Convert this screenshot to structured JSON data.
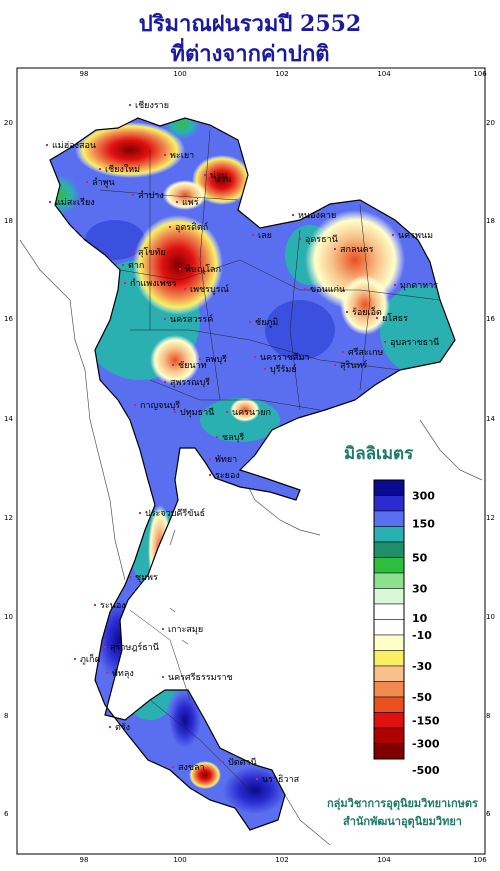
{
  "title_line1": "ปริมาณฝนรวมปี  2552",
  "title_line2": "ที่ต่างจากค่าปกติ",
  "axis": {
    "lon_labels": [
      "98",
      "100",
      "102",
      "104",
      "106"
    ],
    "lat_labels": [
      "20",
      "18",
      "16",
      "14",
      "12",
      "10",
      "8",
      "6"
    ]
  },
  "legend": {
    "title": "มิลลิเมตร",
    "labels": [
      "300",
      "150",
      "50",
      "30",
      "10",
      "-10",
      "-30",
      "-50",
      "-150",
      "-300",
      "-500"
    ],
    "colors": [
      "#0a0a90",
      "#2b2bd0",
      "#5a6ff0",
      "#2ab0b0",
      "#1f8f6a",
      "#2fbf3f",
      "#8de08d",
      "#d8f8d8",
      "#ffffff",
      "#ffffff",
      "#ffffc8",
      "#f8f060",
      "#f8c08a",
      "#f08a50",
      "#e85020",
      "#e01010",
      "#b00000",
      "#800000"
    ]
  },
  "places": [
    "เชียงราย",
    "แม่ฮ่องสอน",
    "เชียงใหม่",
    "พะเยา",
    "น่าน",
    "ลำพูน",
    "ลำปาง",
    "แพร่",
    "แม่สะเรียง",
    "อุตรดิตถ์",
    "น่าน",
    "ตาก",
    "สุโขทัย",
    "พิษณุโลก",
    "กำแพงเพชร",
    "เพชรบูรณ์",
    "นครสวรรค์",
    "ชัยนาท",
    "ลพบุรี",
    "สุพรรณบุรี",
    "กาญจนบุรี",
    "ปทุมธานี",
    "นครนายก",
    "ชลบุรี",
    "ระยอง",
    "พัทยา",
    "นครราชสีมา",
    "ชัยภูมิ",
    "บุรีรัมย์",
    "สุรินทร์",
    "ศรีสะเกษ",
    "อุบลราชธานี",
    "หนองคาย",
    "อุดรธานี",
    "สกลนคร",
    "นครพนม",
    "มุกดาหาร",
    "ขอนแก่น",
    "ร้อยเอ็ด",
    "เลย",
    "ยโสธร",
    "ประจวบคีรีขันธ์",
    "ชุมพร",
    "ระนอง",
    "เกาะสมุย",
    "สุราษฎร์ธานี",
    "ภูเก็ต",
    "นครศรีธรรมราช",
    "พัทลุง",
    "ตรัง",
    "สงขลา",
    "ปัตตานี",
    "นราธิวาส"
  ],
  "credit_line1": "กลุ่มวิชาการอุตุนิยมวิทยาเกษตร",
  "credit_line2": "สำนักพัฒนาอุตุนิยมวิทยา"
}
